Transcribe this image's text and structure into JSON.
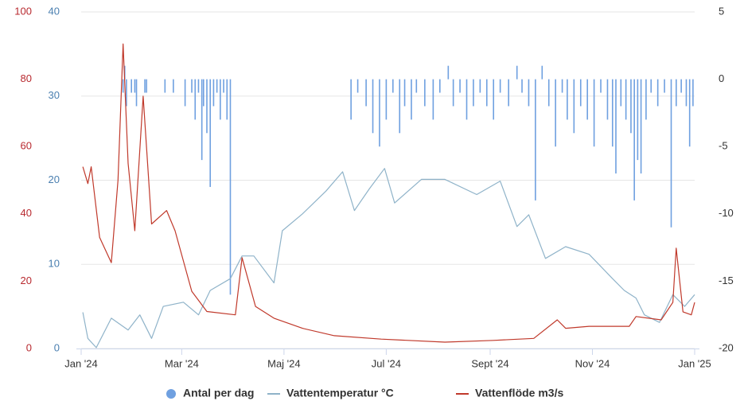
{
  "chart_data": {
    "type": "combo",
    "xlim": [
      0,
      366
    ],
    "xticks": [
      {
        "value": 0,
        "label": "Jan '24"
      },
      {
        "value": 60,
        "label": "Mar '24"
      },
      {
        "value": 121,
        "label": "Maj '24"
      },
      {
        "value": 182,
        "label": "Jul '24"
      },
      {
        "value": 244,
        "label": "Sept '24"
      },
      {
        "value": 305,
        "label": "Nov '24"
      },
      {
        "value": 366,
        "label": "Jan '25"
      }
    ],
    "ylim": [
      0,
      40
    ],
    "yticks": [
      0,
      10,
      20,
      30,
      40
    ],
    "y2lim": [
      -20,
      5
    ],
    "y2ticks": [
      -20,
      -15,
      -10,
      -5,
      0,
      5
    ],
    "y3lim": [
      0,
      100
    ],
    "y3ticks": [
      0,
      20,
      40,
      60,
      80,
      100
    ],
    "grid": true,
    "series": [
      {
        "name": "Antal per dag",
        "type": "bar",
        "axis": "y2",
        "color": "#6fa0e0",
        "x": [
          25,
          26,
          27,
          30,
          32,
          33,
          38,
          39,
          50,
          55,
          62,
          66,
          68,
          70,
          72,
          73,
          75,
          77,
          79,
          81,
          83,
          85,
          87,
          89,
          161,
          165,
          170,
          174,
          178,
          182,
          186,
          190,
          193,
          197,
          200,
          205,
          210,
          214,
          219,
          222,
          226,
          230,
          234,
          238,
          242,
          246,
          250,
          255,
          260,
          263,
          267,
          271,
          275,
          279,
          283,
          287,
          290,
          294,
          298,
          302,
          306,
          310,
          314,
          317,
          319,
          322,
          325,
          328,
          330,
          332,
          334,
          337,
          340,
          344,
          348,
          352,
          355,
          358,
          361,
          363,
          365
        ],
        "values": [
          -1,
          1,
          -2,
          -1,
          -1,
          -2,
          -1,
          -1,
          -1,
          -1,
          -2,
          -1,
          -3,
          -1,
          -6,
          -2,
          -4,
          -8,
          -2,
          -1,
          -3,
          -1,
          -3,
          -16,
          -3,
          -1,
          -2,
          -4,
          -5,
          -3,
          -1,
          -4,
          -2,
          -3,
          -1,
          -2,
          -3,
          -1,
          1,
          -2,
          -1,
          -3,
          -2,
          -1,
          -2,
          -3,
          -1,
          -2,
          1,
          -1,
          -2,
          -9,
          1,
          -2,
          -5,
          -1,
          -3,
          -4,
          -2,
          -3,
          -5,
          -1,
          -3,
          -5,
          -7,
          -2,
          -3,
          -4,
          -9,
          -6,
          -7,
          -3,
          -1,
          -2,
          -1,
          -11,
          -2,
          -1,
          -2,
          -5,
          -2
        ]
      },
      {
        "name": "Vattentemperatur °C",
        "type": "line",
        "axis": "y",
        "color": "#8fb3c9",
        "x": [
          1,
          4,
          9,
          18,
          28,
          35,
          42,
          49,
          61,
          70,
          77,
          89,
          96,
          103,
          115,
          120,
          132,
          146,
          156,
          163,
          172,
          181,
          187,
          203,
          217,
          236,
          250,
          260,
          267,
          277,
          289,
          303,
          317,
          324,
          331,
          336,
          345,
          353,
          360,
          366
        ],
        "values": [
          4.3,
          1.2,
          0.1,
          3.6,
          2.2,
          4,
          1.2,
          5,
          5.5,
          4,
          6.9,
          8.3,
          11,
          11,
          7.8,
          14,
          16,
          18.7,
          21,
          16.4,
          19,
          21.4,
          17.3,
          20.1,
          20.1,
          18.3,
          19.9,
          14.5,
          15.9,
          10.7,
          12.1,
          11.2,
          8.3,
          6.9,
          6,
          4,
          3.1,
          6.4,
          5,
          6.4
        ]
      },
      {
        "name": "Vattenflöde m3/s",
        "type": "line",
        "axis": "y3",
        "color": "#c0392b",
        "x": [
          1,
          4,
          6,
          11,
          18,
          22,
          25,
          28,
          32,
          37,
          42,
          51,
          56,
          66,
          75,
          92,
          96,
          104,
          115,
          132,
          151,
          179,
          217,
          246,
          270,
          284,
          289,
          303,
          327,
          331,
          346,
          353,
          355,
          359,
          364,
          366
        ],
        "values": [
          54,
          49,
          54,
          33,
          25.5,
          50,
          90.5,
          55,
          35,
          75,
          37,
          41,
          35,
          17,
          11,
          10,
          27,
          12.5,
          9,
          6,
          3.8,
          2.8,
          1.9,
          2.4,
          3,
          8.5,
          6,
          6.6,
          6.6,
          9.5,
          8.5,
          13.7,
          29.8,
          10.9,
          10,
          13.7
        ]
      }
    ],
    "legend": "bottom"
  }
}
